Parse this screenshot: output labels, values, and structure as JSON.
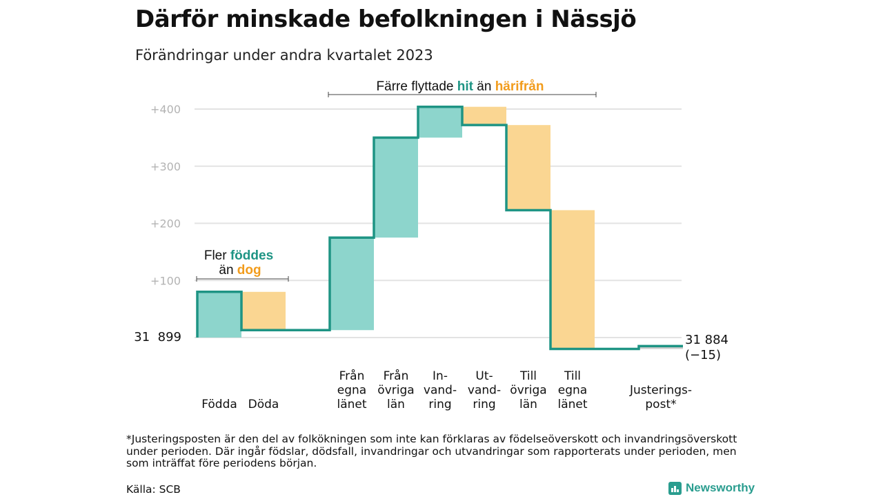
{
  "title": "Därför minskade befolkningen i Nässjö",
  "subtitle": "Förändringar under andra kvartalet 2023",
  "footnote": "*Justeringsposten är den del av folkökningen som inte kan förklaras av födelseöverskott och invandringsöverskott under perioden. Där ingår födslar, dödsfall, invandringar och utvandringar som rapporterats under perioden, men som inträffat före periodens början.",
  "source": "Källa: SCB",
  "logo_text": "Newsworthy",
  "colors": {
    "increase": "#8dd5cc",
    "decrease": "#fad692",
    "line": "#1e9484",
    "adjustment": "#cccccc",
    "highlight_teal": "#1e9484",
    "highlight_orange": "#f29c1c",
    "grid": "#e3e3e3",
    "tick_label": "#b3b3b3"
  },
  "chart_data": {
    "type": "waterfall",
    "start_label": "31  899",
    "end_label": [
      "31 884",
      "(−15)"
    ],
    "y_ticks": [
      {
        "value": 100,
        "label": "+100"
      },
      {
        "value": 200,
        "label": "+200"
      },
      {
        "value": 300,
        "label": "+300"
      },
      {
        "value": 400,
        "label": "+400"
      }
    ],
    "ylim": [
      0,
      400
    ],
    "grid": true,
    "steps": [
      {
        "label": [
          "Födda"
        ],
        "value": 80,
        "kind": "increase"
      },
      {
        "label": [
          "Döda"
        ],
        "value": -67,
        "kind": "decrease"
      },
      {
        "label": [],
        "value": 0,
        "kind": "gap"
      },
      {
        "label": [
          "Från",
          "egna",
          "länet"
        ],
        "value": 162,
        "kind": "increase"
      },
      {
        "label": [
          "Från",
          "övriga",
          "län"
        ],
        "value": 175,
        "kind": "increase"
      },
      {
        "label": [
          "In-",
          "vand-",
          "ring"
        ],
        "value": 54,
        "kind": "increase"
      },
      {
        "label": [
          "Ut-",
          "vand-",
          "ring"
        ],
        "value": -32,
        "kind": "decrease"
      },
      {
        "label": [
          "Till",
          "övriga",
          "län"
        ],
        "value": -149,
        "kind": "decrease"
      },
      {
        "label": [
          "Till",
          "egna",
          "länet"
        ],
        "value": -243,
        "kind": "decrease"
      },
      {
        "label": [],
        "value": 0,
        "kind": "gap"
      },
      {
        "label": [
          "Justerings-",
          "post*"
        ],
        "value": 5,
        "kind": "adjustment"
      }
    ],
    "annotations": [
      {
        "lines": [
          [
            {
              "t": "Fler ",
              "c": "n"
            },
            {
              "t": "föddes",
              "c": "teal"
            }
          ],
          [
            {
              "t": "än ",
              "c": "n"
            },
            {
              "t": "dog",
              "c": "orange"
            }
          ]
        ]
      },
      {
        "lines": [
          [
            {
              "t": "Färre flyttade ",
              "c": "n"
            },
            {
              "t": "hit",
              "c": "teal"
            },
            {
              "t": " än ",
              "c": "n"
            },
            {
              "t": "härifrån",
              "c": "orange"
            }
          ]
        ]
      }
    ]
  }
}
